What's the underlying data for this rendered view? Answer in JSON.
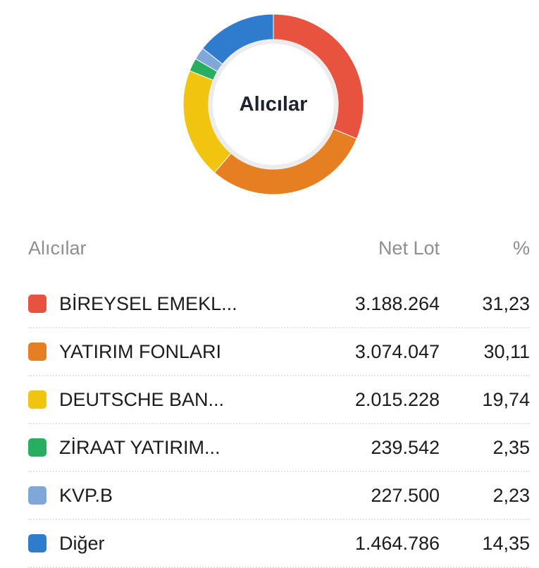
{
  "chart_data": {
    "type": "pie",
    "title": "Alıcılar",
    "slices": [
      {
        "label": "BİREYSEL EMEKL...",
        "net_lot": "3.188.264",
        "percent": "31,23",
        "value": 31.23,
        "color": "#e8533f"
      },
      {
        "label": "YATIRIM FONLARI",
        "net_lot": "3.074.047",
        "percent": "30,11",
        "value": 30.11,
        "color": "#e67e22"
      },
      {
        "label": "DEUTSCHE BAN...",
        "net_lot": "2.015.228",
        "percent": "19,74",
        "value": 19.74,
        "color": "#f1c40f"
      },
      {
        "label": "ZİRAAT YATIRIM...",
        "net_lot": "239.542",
        "percent": "2,35",
        "value": 2.35,
        "color": "#27ae60"
      },
      {
        "label": "KVP.B",
        "net_lot": "227.500",
        "percent": "2,23",
        "value": 2.23,
        "color": "#7fa7d8"
      },
      {
        "label": "Diğer",
        "net_lot": "1.464.786",
        "percent": "14,35",
        "value": 14.35,
        "color": "#2f7ccf"
      }
    ]
  },
  "table": {
    "headers": {
      "name": "Alıcılar",
      "lot": "Net Lot",
      "pct": "%"
    }
  }
}
